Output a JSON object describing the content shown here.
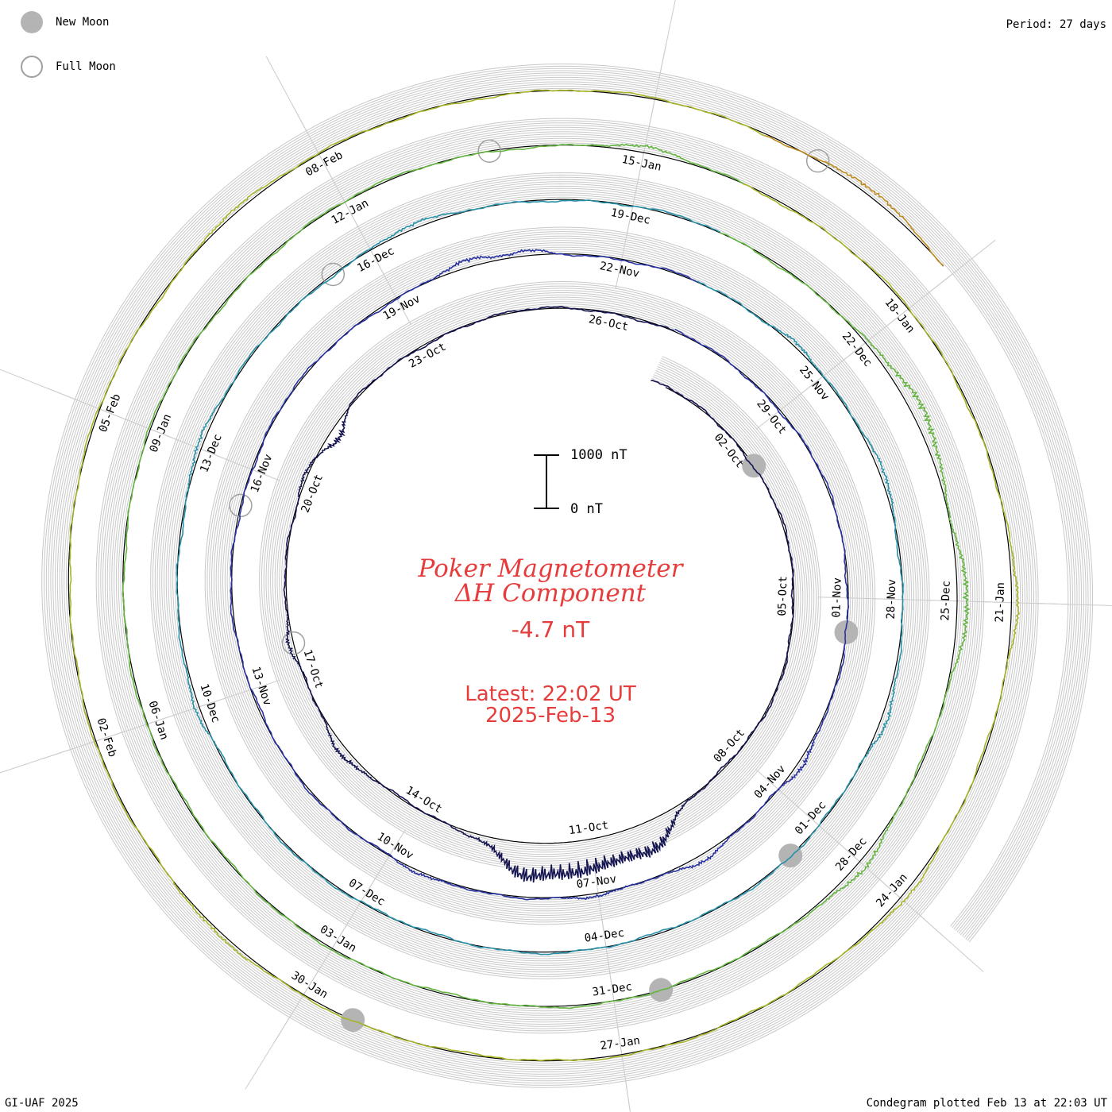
{
  "legend": {
    "new_moon": "New Moon",
    "full_moon": "Full Moon"
  },
  "period": "Period: 27 days",
  "footer_left": "GI-UAF 2025",
  "footer_right": "Condegram plotted Feb 13 at 22:03 UT",
  "title_line1": "Poker Magnetometer",
  "title_line2": "ΔH Component",
  "current_value": "-4.7 nT",
  "latest_time": "Latest: 22:02 UT",
  "latest_date": "2025-Feb-13",
  "scale": {
    "top_label": "1000 nT",
    "bottom_label": "0 nT"
  },
  "colors": {
    "title": "#e63c3c",
    "grid": "#c8c8c8",
    "moon": "#b4b4b4"
  },
  "chart_data": {
    "type": "line",
    "projection": "spiral condegram",
    "component": "ΔH",
    "units": "nT",
    "period_days": 27,
    "start_date": "2024-09-30",
    "end_date": "2025-02-13",
    "scale_bar_nT": [
      0,
      1000
    ],
    "date_labels": [
      "02-Oct",
      "05-Oct",
      "08-Oct",
      "11-Oct",
      "14-Oct",
      "17-Oct",
      "20-Oct",
      "23-Oct",
      "26-Oct",
      "29-Oct",
      "01-Nov",
      "04-Nov",
      "07-Nov",
      "10-Nov",
      "13-Nov",
      "16-Nov",
      "19-Nov",
      "22-Nov",
      "25-Nov",
      "28-Nov",
      "01-Dec",
      "04-Dec",
      "07-Dec",
      "10-Dec",
      "13-Dec",
      "16-Dec",
      "19-Dec",
      "22-Dec",
      "25-Dec",
      "28-Dec",
      "31-Dec",
      "03-Jan",
      "06-Jan",
      "09-Jan",
      "12-Jan",
      "15-Jan",
      "18-Jan",
      "21-Jan",
      "24-Jan",
      "27-Jan",
      "30-Jan",
      "02-Feb",
      "05-Feb",
      "08-Feb"
    ],
    "new_moons": [
      "2024-10-02",
      "2024-11-01",
      "2024-12-01",
      "2024-12-30",
      "2025-01-29"
    ],
    "full_moons": [
      "2024-10-17",
      "2024-11-15",
      "2024-12-15",
      "2025-01-13",
      "2025-02-12"
    ],
    "series": [
      {
        "color": "#141450",
        "disturbances": [
          {
            "day": 10,
            "peak_nT": 900,
            "width": 0.5
          },
          {
            "day": 11.2,
            "peak_nT": 1700,
            "width": 1.4
          },
          {
            "day": 12.1,
            "peak_nT": 800,
            "width": 0.5
          },
          {
            "day": 15.5,
            "peak_nT": 350,
            "width": 0.6
          },
          {
            "day": 17.5,
            "peak_nT": 300,
            "width": 0.5
          },
          {
            "day": 20.3,
            "peak_nT": 250,
            "width": 0.5
          },
          {
            "day": 21,
            "peak_nT": -600,
            "width": 0.4
          }
        ]
      },
      {
        "color": "#2832a0",
        "disturbances": [
          {
            "day": 7.5,
            "peak_nT": 350,
            "width": 0.5
          },
          {
            "day": 9.5,
            "peak_nT": 280,
            "width": 0.5
          },
          {
            "day": 11,
            "peak_nT": 200,
            "width": 0.6
          },
          {
            "day": 13.5,
            "peak_nT": 220,
            "width": 0.5
          },
          {
            "day": 24,
            "peak_nT": 300,
            "width": 0.5
          },
          {
            "day": 24.8,
            "peak_nT": 220,
            "width": 0.4
          }
        ]
      },
      {
        "color": "#2890a8",
        "disturbances": [
          {
            "day": 1.5,
            "peak_nT": 250,
            "width": 0.5
          },
          {
            "day": 3.5,
            "peak_nT": 260,
            "width": 0.5
          },
          {
            "day": 6.5,
            "peak_nT": 300,
            "width": 0.6
          },
          {
            "day": 17,
            "peak_nT": 220,
            "width": 0.5
          },
          {
            "day": 20,
            "peak_nT": 260,
            "width": 0.5
          },
          {
            "day": 23.5,
            "peak_nT": 200,
            "width": 0.5
          }
        ]
      },
      {
        "color": "#64b440",
        "disturbances": [
          {
            "day": 3,
            "peak_nT": 600,
            "width": 0.9
          },
          {
            "day": 5,
            "peak_nT": 500,
            "width": 0.8
          },
          {
            "day": 8,
            "peak_nT": 350,
            "width": 0.6
          },
          {
            "day": 26,
            "peak_nT": 250,
            "width": 0.5
          }
        ]
      },
      {
        "color": "#a8b428",
        "disturbances": [
          {
            "day": 5,
            "peak_nT": 260,
            "width": 0.6
          },
          {
            "day": 8,
            "peak_nT": 200,
            "width": 0.5
          },
          {
            "day": 15,
            "peak_nT": 250,
            "width": 0.6
          },
          {
            "day": 22,
            "peak_nT": 220,
            "width": 0.5
          }
        ]
      },
      {
        "color": "#be8c1e",
        "disturbances": [
          {
            "day": 1,
            "peak_nT": 320,
            "width": 0.5
          },
          {
            "day": 2.6,
            "peak_nT": -250,
            "width": 0.4
          },
          {
            "day": 5,
            "peak_nT": 300,
            "width": 0.6
          },
          {
            "day": 10,
            "peak_nT": 260,
            "width": 0.6
          },
          {
            "day": 24,
            "peak_nT": 240,
            "width": 0.5
          }
        ]
      },
      {
        "color": "#c8641e",
        "disturbances": [
          {
            "day": 2,
            "peak_nT": 300,
            "width": 0.6
          },
          {
            "day": 4.5,
            "peak_nT": 350,
            "width": 0.6
          },
          {
            "day": 5.6,
            "peak_nT": 280,
            "width": 0.5
          },
          {
            "day": 12,
            "peak_nT": 280,
            "width": 0.6
          },
          {
            "day": 17,
            "peak_nT": 300,
            "width": 0.7
          },
          {
            "day": 18.4,
            "peak_nT": -200,
            "width": 0.4
          },
          {
            "day": 20,
            "peak_nT": 260,
            "width": 0.5
          },
          {
            "day": 22.2,
            "peak_nT": 300,
            "width": 0.5
          },
          {
            "day": 23.5,
            "peak_nT": 350,
            "width": 0.5
          },
          {
            "day": 25.5,
            "peak_nT": -250,
            "width": 0.4
          }
        ]
      }
    ]
  }
}
